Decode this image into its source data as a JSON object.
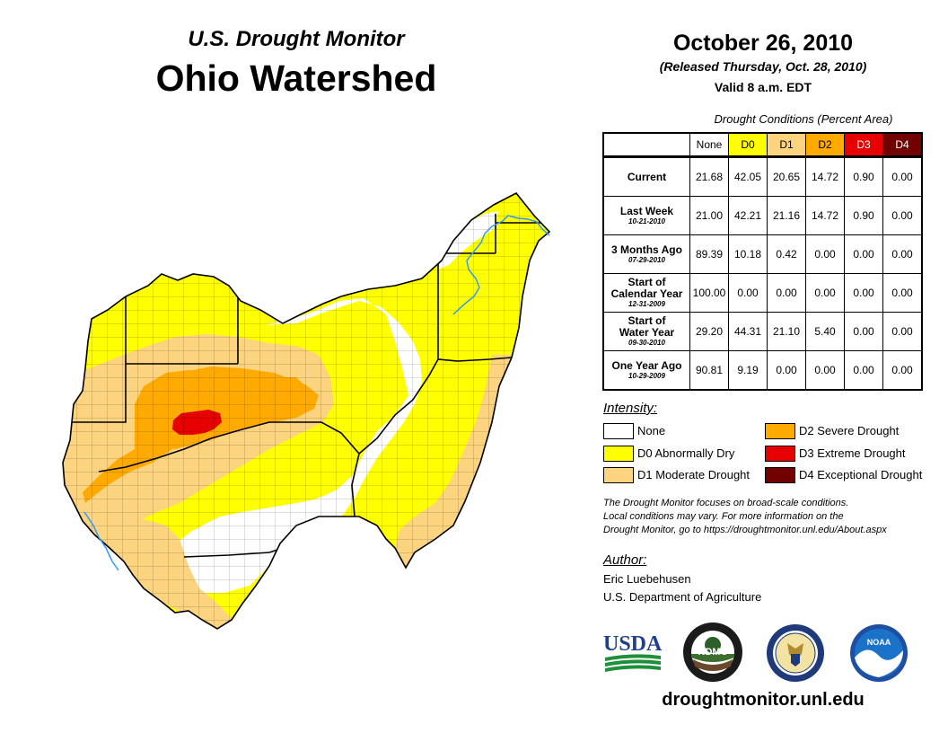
{
  "header": {
    "monitor_title": "U.S. Drought Monitor",
    "region_title": "Ohio Watershed",
    "date": "October 26, 2010",
    "released": "(Released Thursday, Oct. 28, 2010)",
    "valid": "Valid 8 a.m. EDT"
  },
  "table": {
    "caption": "Drought Conditions (Percent Area)",
    "columns": [
      "None",
      "D0",
      "D1",
      "D2",
      "D3",
      "D4"
    ],
    "column_colors": [
      "#ffffff",
      "#ffff00",
      "#fcd37f",
      "#ffaa00",
      "#e60000",
      "#730000"
    ],
    "rows": [
      {
        "label_lines": [
          "Current"
        ],
        "date": "",
        "values": [
          "21.68",
          "42.05",
          "20.65",
          "14.72",
          "0.90",
          "0.00"
        ]
      },
      {
        "label_lines": [
          "Last Week"
        ],
        "date": "10-21-2010",
        "values": [
          "21.00",
          "42.21",
          "21.16",
          "14.72",
          "0.90",
          "0.00"
        ]
      },
      {
        "label_lines": [
          "3 Months Ago"
        ],
        "date": "07-29-2010",
        "values": [
          "89.39",
          "10.18",
          "0.42",
          "0.00",
          "0.00",
          "0.00"
        ]
      },
      {
        "label_lines": [
          "Start of",
          "Calendar Year"
        ],
        "date": "12-31-2009",
        "values": [
          "100.00",
          "0.00",
          "0.00",
          "0.00",
          "0.00",
          "0.00"
        ]
      },
      {
        "label_lines": [
          "Start of",
          "Water Year"
        ],
        "date": "09-30-2010",
        "values": [
          "29.20",
          "44.31",
          "21.10",
          "5.40",
          "0.00",
          "0.00"
        ]
      },
      {
        "label_lines": [
          "One Year Ago"
        ],
        "date": "10-29-2009",
        "values": [
          "90.81",
          "9.19",
          "0.00",
          "0.00",
          "0.00",
          "0.00"
        ]
      }
    ]
  },
  "legend": {
    "title": "Intensity:",
    "items": [
      {
        "label": "None",
        "color": "#ffffff"
      },
      {
        "label": "D0 Abnormally Dry",
        "color": "#ffff00"
      },
      {
        "label": "D1 Moderate Drought",
        "color": "#fcd37f"
      },
      {
        "label": "D2 Severe Drought",
        "color": "#ffaa00"
      },
      {
        "label": "D3 Extreme Drought",
        "color": "#e60000"
      },
      {
        "label": "D4 Exceptional Drought",
        "color": "#730000"
      }
    ]
  },
  "note": {
    "line1": "The Drought Monitor focuses on broad-scale conditions.",
    "line2": "Local conditions may vary. For more information on the",
    "line3": "Drought Monitor, go to https://droughtmonitor.unl.edu/About.aspx"
  },
  "author": {
    "label": "Author:",
    "name": "Eric Luebehusen",
    "org": "U.S. Department of Agriculture"
  },
  "logos": {
    "usda": "USDA",
    "ndmc": "NDMC",
    "ndmc_ring": "NATIONAL DROUGHT MITIGATION CENTER · UNIVERSITY OF NEBRASKA",
    "noaa": "NOAA"
  },
  "website": "droughtmonitor.unl.edu",
  "colors": {
    "river": "#3399ff",
    "county_line": "#000000"
  }
}
